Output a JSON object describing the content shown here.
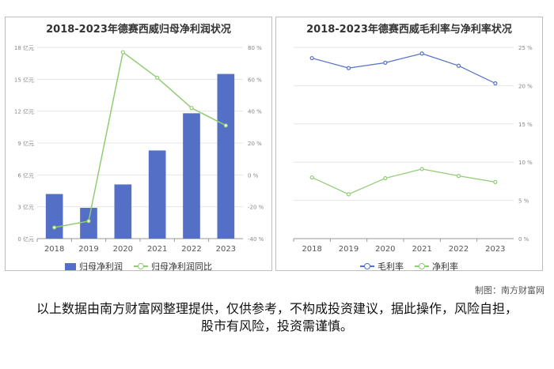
{
  "colors": {
    "bar": "#5470c6",
    "yoy": "#91cc75",
    "gross": "#5470c6",
    "net": "#91cc75"
  },
  "chart_data": [
    {
      "type": "bar",
      "title": "2018-2023年德赛西威归母净利润状况",
      "categories": [
        "2018",
        "2019",
        "2020",
        "2021",
        "2022",
        "2023"
      ],
      "series": [
        {
          "name": "归母净利润",
          "type": "bar",
          "axis": "left",
          "values": [
            4.2,
            2.9,
            5.1,
            8.3,
            11.8,
            15.5
          ]
        },
        {
          "name": "归母净利润同比",
          "type": "line",
          "axis": "right",
          "values": [
            -33,
            -29,
            77,
            61,
            42,
            31
          ]
        }
      ],
      "y_left": {
        "ticks": [
          "0 亿元",
          "3 亿元",
          "6 亿元",
          "9 亿元",
          "12 亿元",
          "15 亿元",
          "18 亿元"
        ],
        "ylim": [
          0,
          18
        ]
      },
      "y_right": {
        "ticks": [
          "-40 %",
          "-20 %",
          "0 %",
          "20 %",
          "40 %",
          "60 %",
          "80 %"
        ],
        "ylim": [
          -40,
          80
        ]
      },
      "legend": "bottom"
    },
    {
      "type": "line",
      "title": "2018-2023年德赛西威毛利率与净利率状况",
      "categories": [
        "2018",
        "2019",
        "2020",
        "2021",
        "2022",
        "2023"
      ],
      "series": [
        {
          "name": "毛利率",
          "values": [
            23.6,
            22.3,
            23.0,
            24.2,
            22.6,
            20.3
          ]
        },
        {
          "name": "净利率",
          "values": [
            8.0,
            5.8,
            7.9,
            9.1,
            8.2,
            7.4
          ]
        }
      ],
      "y_right": {
        "ticks": [
          "0 %",
          "5 %",
          "10 %",
          "15 %",
          "20 %",
          "25 %"
        ],
        "ylim": [
          0,
          25
        ]
      },
      "legend": "bottom"
    }
  ],
  "credit": "制图：南方财富网",
  "disclaimer": "以上数据由南方财富网整理提供，仅供参考，不构成投资建议，据此操作，风险自担，股市有风险，投资需谨慎。"
}
